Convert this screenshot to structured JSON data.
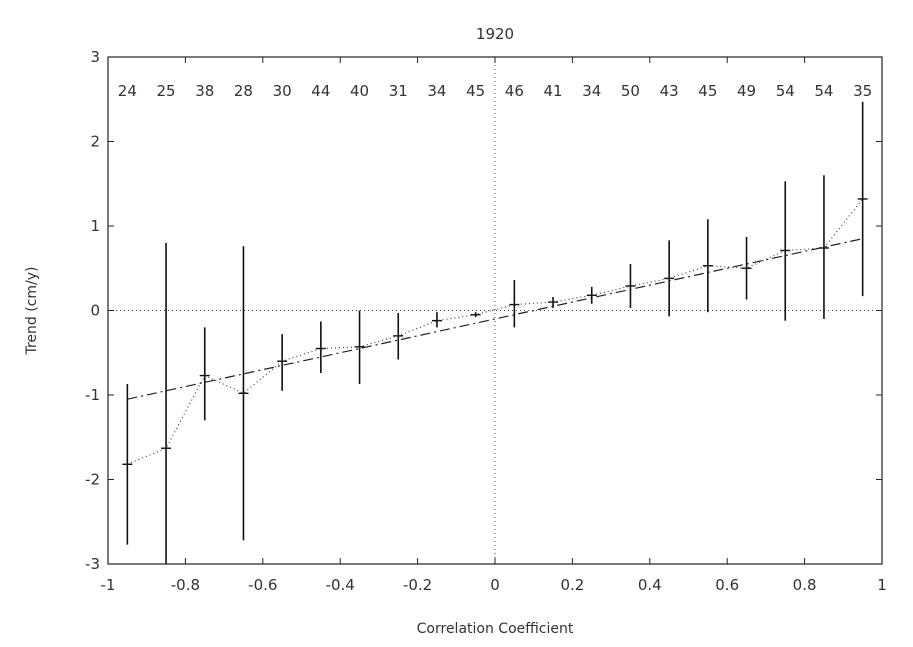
{
  "chart_data": {
    "type": "line",
    "title": "1920",
    "xlabel": "Correlation Coefficient",
    "ylabel": "Trend (cm/y)",
    "xlim": [
      -1,
      1
    ],
    "ylim": [
      -3,
      3
    ],
    "x_ticks": [
      "-1",
      "-0.8",
      "-0.6",
      "-0.4",
      "-0.2",
      "0",
      "0.2",
      "0.4",
      "0.6",
      "0.8",
      "1"
    ],
    "y_ticks": [
      "-3",
      "-2",
      "-1",
      "0",
      "1",
      "2",
      "3"
    ],
    "grid": false,
    "reference_lines": [
      "y = 0",
      "x = 0"
    ],
    "x": [
      -0.95,
      -0.85,
      -0.75,
      -0.65,
      -0.55,
      -0.45,
      -0.35,
      -0.25,
      -0.15,
      -0.05,
      0.05,
      0.15,
      0.25,
      0.35,
      0.45,
      0.55,
      0.65,
      0.75,
      0.85,
      0.95
    ],
    "counts": [
      24,
      25,
      38,
      28,
      30,
      44,
      40,
      31,
      34,
      45,
      46,
      41,
      34,
      50,
      43,
      45,
      49,
      54,
      54,
      35
    ],
    "series": [
      {
        "style": "dotted with error bars",
        "values": [
          -1.82,
          -1.63,
          -0.77,
          -0.98,
          -0.6,
          -0.45,
          -0.43,
          -0.3,
          -0.12,
          -0.05,
          0.07,
          0.1,
          0.18,
          0.29,
          0.38,
          0.53,
          0.5,
          0.71,
          0.74,
          1.32
        ],
        "err_low": [
          -2.77,
          -3.0,
          -1.3,
          -2.72,
          -0.95,
          -0.74,
          -0.87,
          -0.58,
          -0.2,
          -0.08,
          -0.2,
          0.03,
          0.08,
          0.03,
          -0.07,
          -0.02,
          0.13,
          -0.12,
          -0.1,
          0.17
        ],
        "err_high": [
          -0.87,
          0.8,
          -0.2,
          0.76,
          -0.28,
          -0.13,
          0.0,
          -0.03,
          -0.02,
          -0.02,
          0.36,
          0.16,
          0.28,
          0.55,
          0.83,
          1.08,
          0.87,
          1.53,
          1.6,
          2.47
        ]
      },
      {
        "style": "dash-dot fit",
        "x": [
          -0.95,
          0.95
        ],
        "values": [
          -1.05,
          0.85
        ]
      }
    ]
  }
}
